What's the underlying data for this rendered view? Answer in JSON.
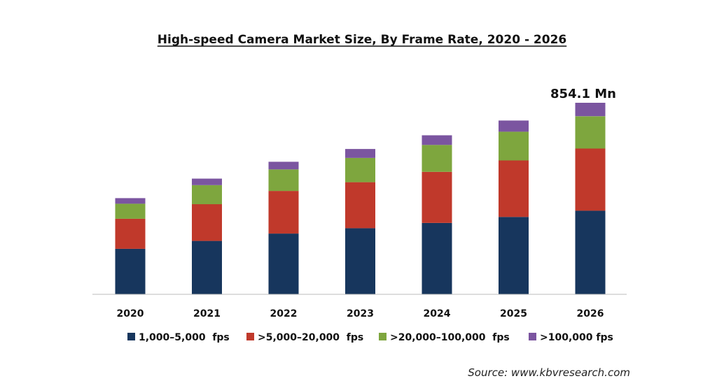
{
  "chart_data": {
    "type": "bar",
    "stacked": true,
    "title": "High-speed Camera Market Size, By Frame Rate, 2020 - 2026",
    "xlabel": "",
    "ylabel": "",
    "ylim": [
      0,
      854.1
    ],
    "grid": false,
    "legend_position": "bottom",
    "categories": [
      "2020",
      "2021",
      "2022",
      "2023",
      "2024",
      "2025",
      "2026"
    ],
    "series": [
      {
        "name": "1,000–5,000  fps",
        "color": "#17365d",
        "values": [
          203,
          238,
          271,
          295,
          318,
          345,
          373
        ]
      },
      {
        "name": ">5,000–20,000  fps",
        "color": "#c0392b",
        "values": [
          134,
          164,
          190,
          205,
          228,
          252,
          277
        ]
      },
      {
        "name": ">20,000–100,000  fps",
        "color": "#7ea63e",
        "values": [
          67,
          85,
          96,
          108,
          120,
          128,
          144
        ]
      },
      {
        "name": ">100,000 fps",
        "color": "#7b55a0",
        "values": [
          25,
          29,
          34,
          40,
          43,
          50,
          60
        ]
      }
    ],
    "annotations": [
      {
        "category": "2026",
        "text": "854.1 Mn"
      }
    ]
  },
  "source_text": "Source: www.kbvresearch.com"
}
